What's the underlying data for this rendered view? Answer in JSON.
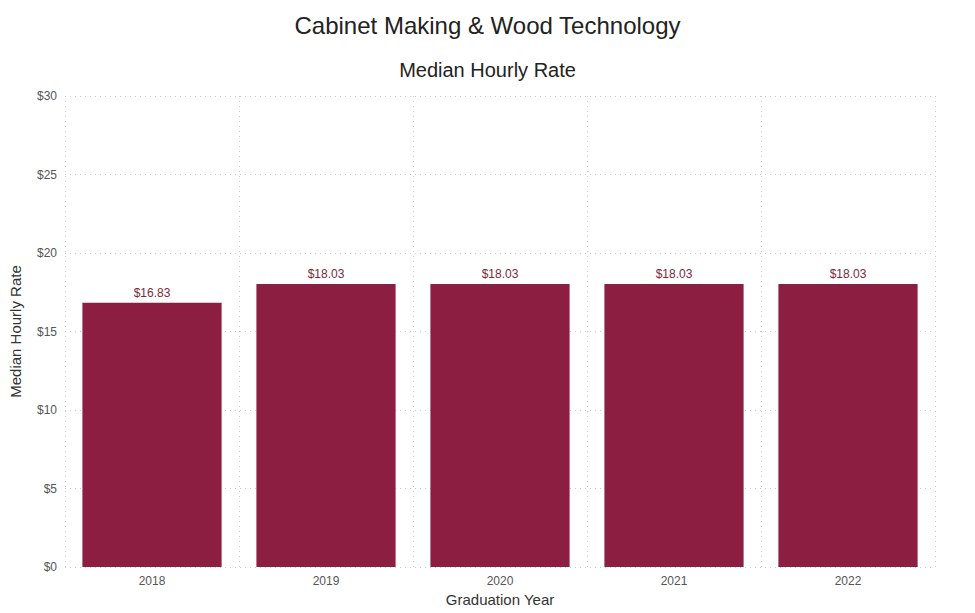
{
  "chart_data": {
    "type": "bar",
    "title": "Cabinet Making & Wood Technology",
    "subtitle": "Median Hourly Rate",
    "x_label": "Graduation Year",
    "y_label": "Median Hourly Rate",
    "categories": [
      "2018",
      "2019",
      "2020",
      "2021",
      "2022"
    ],
    "values": [
      16.83,
      18.03,
      18.03,
      18.03,
      18.03
    ],
    "value_labels": [
      "$16.83",
      "$18.03",
      "$18.03",
      "$18.03",
      "$18.03"
    ],
    "color": "#8b1e41",
    "ylim": [
      0,
      30
    ],
    "yticks": [
      {
        "value": 0,
        "label": "$0"
      },
      {
        "value": 5,
        "label": "$5"
      },
      {
        "value": 10,
        "label": "$10"
      },
      {
        "value": 15,
        "label": "$15"
      },
      {
        "value": 20,
        "label": "$20"
      },
      {
        "value": 25,
        "label": "$25"
      },
      {
        "value": 30,
        "label": "$30"
      }
    ],
    "grid": true,
    "data_labels": true
  }
}
